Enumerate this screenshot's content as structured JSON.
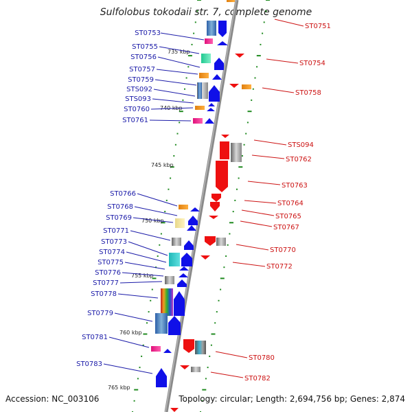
{
  "title": "Sulfolobus tokodaii str. 7, complete genome",
  "footer": {
    "accession": "Accession: NC_003106",
    "topology": "Topology: circular; Length: 2,694,756 bp; Genes: 2,874"
  },
  "kbp_labels": [
    "735 kbp",
    "740 kbp",
    "745 kbp",
    "750 kbp",
    "755 kbp",
    "760 kbp",
    "765 kbp"
  ],
  "left_labels": [
    "ST0753",
    "ST0755",
    "ST0756",
    "ST0757",
    "ST0759",
    "STS092",
    "STS093",
    "ST0760",
    "ST0761",
    "ST0766",
    "ST0768",
    "ST0769",
    "ST0771",
    "ST0773",
    "ST0774",
    "ST0775",
    "ST0776",
    "ST0777",
    "ST0778",
    "ST0779",
    "ST0781",
    "ST0783"
  ],
  "right_labels": [
    "ST0751",
    "ST0754",
    "ST0758",
    "STS094",
    "ST0762",
    "ST0763",
    "ST0764",
    "ST0765",
    "ST0767",
    "ST0770",
    "ST0772",
    "ST0780",
    "ST0782"
  ],
  "colors": {
    "forward": "#1010e8",
    "reverse": "#ee1010",
    "left_text": "#1a1aa8",
    "right_text": "#cc1111",
    "tick": "#1f8a1f",
    "axis": "#8a8a8a"
  }
}
